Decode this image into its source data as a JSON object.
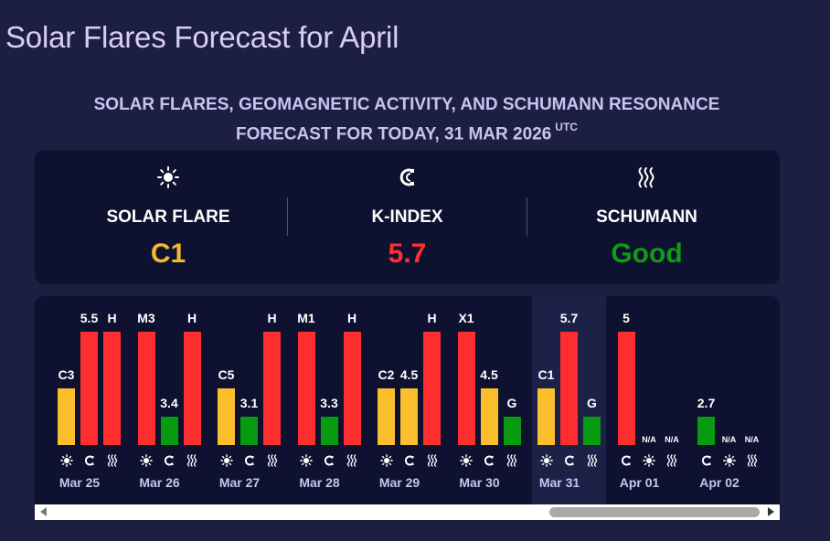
{
  "page_title": "Solar Flares Forecast for April",
  "subtitle": {
    "line1": "SOLAR FLARES, GEOMAGNETIC ACTIVITY, AND SCHUMANN RESONANCE",
    "line2": "FORECAST FOR TODAY, 31 MAR 2026",
    "tz": "UTC"
  },
  "summary": {
    "solar": {
      "label": "SOLAR FLARE",
      "value": "C1",
      "color": "#f6b92c",
      "icon": "sun-icon"
    },
    "kindex": {
      "label": "K-INDEX",
      "value": "5.7",
      "color": "#ff3030",
      "icon": "magnet-icon"
    },
    "schumann": {
      "label": "SCHUMANN",
      "value": "Good",
      "color": "#119a16",
      "icon": "waves-icon"
    }
  },
  "colors": {
    "yellow": "#fbbf2d",
    "red": "#fe2e2e",
    "green": "#079b0f"
  },
  "days": [
    {
      "date": "",
      "bars": [
        {
          "type": "solar",
          "label": "",
          "level": 0.5,
          "color": "yellow"
        }
      ]
    },
    {
      "date": "Mar 25",
      "bars": [
        {
          "type": "solar",
          "label": "C3",
          "level": 0.5,
          "color": "yellow"
        },
        {
          "type": "kindex",
          "label": "5.5",
          "level": 1.0,
          "color": "red"
        },
        {
          "type": "schumann",
          "label": "H",
          "level": 1.0,
          "color": "red"
        }
      ]
    },
    {
      "date": "Mar 26",
      "bars": [
        {
          "type": "solar",
          "label": "M3",
          "level": 1.0,
          "color": "red"
        },
        {
          "type": "kindex",
          "label": "3.4",
          "level": 0.25,
          "color": "green"
        },
        {
          "type": "schumann",
          "label": "H",
          "level": 1.0,
          "color": "red"
        }
      ]
    },
    {
      "date": "Mar 27",
      "bars": [
        {
          "type": "solar",
          "label": "C5",
          "level": 0.5,
          "color": "yellow"
        },
        {
          "type": "kindex",
          "label": "3.1",
          "level": 0.25,
          "color": "green"
        },
        {
          "type": "schumann",
          "label": "H",
          "level": 1.0,
          "color": "red"
        }
      ]
    },
    {
      "date": "Mar 28",
      "bars": [
        {
          "type": "solar",
          "label": "M1",
          "level": 1.0,
          "color": "red"
        },
        {
          "type": "kindex",
          "label": "3.3",
          "level": 0.25,
          "color": "green"
        },
        {
          "type": "schumann",
          "label": "H",
          "level": 1.0,
          "color": "red"
        }
      ]
    },
    {
      "date": "Mar 29",
      "bars": [
        {
          "type": "solar",
          "label": "C2",
          "level": 0.5,
          "color": "yellow"
        },
        {
          "type": "kindex",
          "label": "4.5",
          "level": 0.5,
          "color": "yellow"
        },
        {
          "type": "schumann",
          "label": "H",
          "level": 1.0,
          "color": "red"
        }
      ]
    },
    {
      "date": "Mar 30",
      "bars": [
        {
          "type": "solar",
          "label": "X1",
          "level": 1.0,
          "color": "red"
        },
        {
          "type": "kindex",
          "label": "4.5",
          "level": 0.5,
          "color": "yellow"
        },
        {
          "type": "schumann",
          "label": "G",
          "level": 0.25,
          "color": "green"
        }
      ]
    },
    {
      "date": "Mar 31",
      "today": true,
      "bars": [
        {
          "type": "solar",
          "label": "C1",
          "level": 0.5,
          "color": "yellow"
        },
        {
          "type": "kindex",
          "label": "5.7",
          "level": 1.0,
          "color": "red"
        },
        {
          "type": "schumann",
          "label": "G",
          "level": 0.25,
          "color": "green"
        }
      ]
    },
    {
      "date": "Apr 01",
      "bars": [
        {
          "type": "kindex",
          "label": "5",
          "level": 1.0,
          "color": "red"
        },
        {
          "type": "solar",
          "label": "N/A",
          "level": 0,
          "color": "red"
        },
        {
          "type": "schumann",
          "label": "N/A",
          "level": 0,
          "color": "red"
        }
      ]
    },
    {
      "date": "Apr 02",
      "bars": [
        {
          "type": "kindex",
          "label": "2.7",
          "level": 0.25,
          "color": "green"
        },
        {
          "type": "solar",
          "label": "N/A",
          "level": 0,
          "color": "red"
        },
        {
          "type": "schumann",
          "label": "N/A",
          "level": 0,
          "color": "red"
        }
      ]
    }
  ]
}
